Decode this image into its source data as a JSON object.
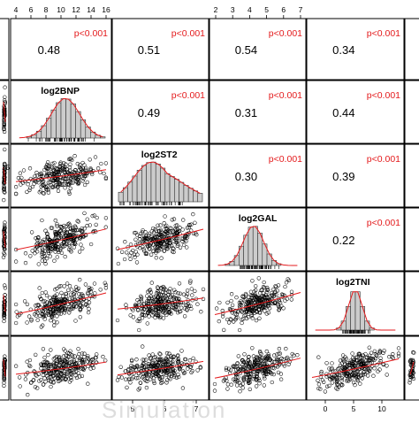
{
  "chart_data": {
    "type": "scatter",
    "subtype": "pairs-matrix",
    "variables": [
      "log2BNP",
      "log2ST2",
      "log2GAL",
      "log2TNI"
    ],
    "visible_grid": "cropped 5 columns x 6 rows of a larger pairs plot",
    "top_axis_ticks": {
      "col_log2BNP": [
        "4",
        "6",
        "8",
        "10",
        "12",
        "14",
        "16"
      ],
      "col_log2GAL": [
        "2",
        "3",
        "4",
        "5",
        "6",
        "7"
      ]
    },
    "bottom_axis_ticks": {
      "col_log2ST2": [
        "5",
        "6",
        "7"
      ],
      "col_log2TNI": [
        "0",
        "5",
        "10"
      ]
    },
    "left_edge_tick": "15",
    "correlations": [
      {
        "pair": [
          "col0",
          "log2BNP"
        ],
        "r": "0.48",
        "p": "p<0.001"
      },
      {
        "pair": [
          "col0",
          "log2ST2"
        ],
        "r": "0.51",
        "p": "p<0.001"
      },
      {
        "pair": [
          "col0",
          "log2GAL"
        ],
        "r": "0.54",
        "p": "p<0.001"
      },
      {
        "pair": [
          "col0",
          "log2TNI"
        ],
        "r": "0.34",
        "p": "p<0.001"
      },
      {
        "pair": [
          "log2BNP",
          "log2ST2"
        ],
        "r": "0.49",
        "p": "p<0.001"
      },
      {
        "pair": [
          "log2BNP",
          "log2GAL"
        ],
        "r": "0.31",
        "p": "p<0.001"
      },
      {
        "pair": [
          "log2BNP",
          "log2TNI"
        ],
        "r": "0.44",
        "p": "p<0.001"
      },
      {
        "pair": [
          "log2ST2",
          "log2GAL"
        ],
        "r": "0.30",
        "p": "p<0.001"
      },
      {
        "pair": [
          "log2ST2",
          "log2TNI"
        ],
        "r": "0.39",
        "p": "p<0.001"
      },
      {
        "pair": [
          "log2GAL",
          "log2TNI"
        ],
        "r": "0.22",
        "p": "p<0.001"
      }
    ],
    "colors": {
      "points": "#000000",
      "smoother": "#e41a1c",
      "pvalue_text": "#e41a1c",
      "histogram_fill": "#cccccc",
      "panel_border": "#000000"
    },
    "scatter_description": "black open-circle points with red loess smoother line in every lower-triangle panel",
    "diagonal": "histogram with red density curve and rug marks"
  },
  "watermark": "Simulation"
}
